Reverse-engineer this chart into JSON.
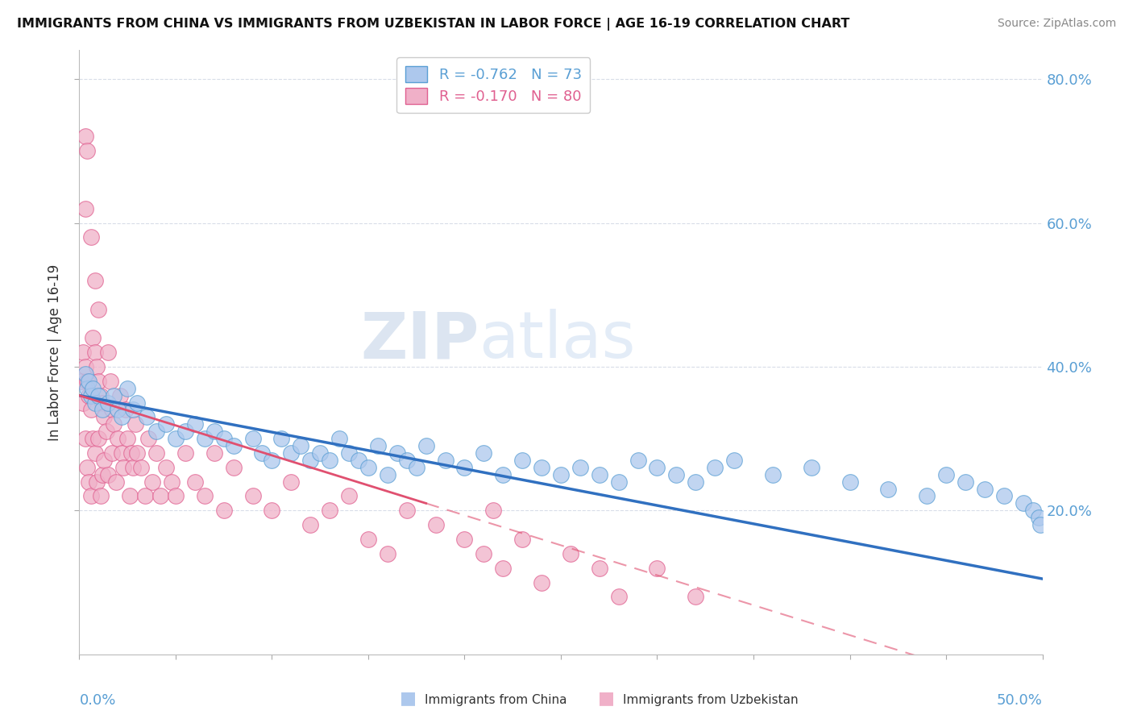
{
  "title": "IMMIGRANTS FROM CHINA VS IMMIGRANTS FROM UZBEKISTAN IN LABOR FORCE | AGE 16-19 CORRELATION CHART",
  "source": "Source: ZipAtlas.com",
  "ylabel": "In Labor Force | Age 16-19",
  "right_ytick_labels": [
    "20.0%",
    "40.0%",
    "60.0%",
    "80.0%"
  ],
  "right_ytick_values": [
    0.2,
    0.4,
    0.6,
    0.8
  ],
  "legend_china_text": "R = -0.762   N = 73",
  "legend_uzbek_text": "R = -0.170   N = 80",
  "color_china_fill": "#adc8ed",
  "color_china_edge": "#5a9fd4",
  "color_uzbek_fill": "#f0b0c8",
  "color_uzbek_edge": "#e06090",
  "color_line_china": "#3070c0",
  "color_line_uzbek": "#e05070",
  "watermark_color": "#d0dff0",
  "background_color": "#ffffff",
  "xlim": [
    0.0,
    0.5
  ],
  "ylim": [
    0.0,
    0.84
  ],
  "grid_color": "#d8dde8",
  "china_scatter_x": [
    0.003,
    0.004,
    0.005,
    0.006,
    0.007,
    0.008,
    0.01,
    0.012,
    0.015,
    0.018,
    0.02,
    0.022,
    0.025,
    0.028,
    0.03,
    0.035,
    0.04,
    0.045,
    0.05,
    0.055,
    0.06,
    0.065,
    0.07,
    0.075,
    0.08,
    0.09,
    0.095,
    0.1,
    0.105,
    0.11,
    0.115,
    0.12,
    0.125,
    0.13,
    0.135,
    0.14,
    0.145,
    0.15,
    0.155,
    0.16,
    0.165,
    0.17,
    0.175,
    0.18,
    0.19,
    0.2,
    0.21,
    0.22,
    0.23,
    0.24,
    0.25,
    0.26,
    0.27,
    0.28,
    0.29,
    0.3,
    0.31,
    0.32,
    0.33,
    0.34,
    0.36,
    0.38,
    0.4,
    0.42,
    0.44,
    0.45,
    0.46,
    0.47,
    0.48,
    0.49,
    0.495,
    0.498,
    0.499
  ],
  "china_scatter_y": [
    0.39,
    0.37,
    0.38,
    0.36,
    0.37,
    0.35,
    0.36,
    0.34,
    0.35,
    0.36,
    0.34,
    0.33,
    0.37,
    0.34,
    0.35,
    0.33,
    0.31,
    0.32,
    0.3,
    0.31,
    0.32,
    0.3,
    0.31,
    0.3,
    0.29,
    0.3,
    0.28,
    0.27,
    0.3,
    0.28,
    0.29,
    0.27,
    0.28,
    0.27,
    0.3,
    0.28,
    0.27,
    0.26,
    0.29,
    0.25,
    0.28,
    0.27,
    0.26,
    0.29,
    0.27,
    0.26,
    0.28,
    0.25,
    0.27,
    0.26,
    0.25,
    0.26,
    0.25,
    0.24,
    0.27,
    0.26,
    0.25,
    0.24,
    0.26,
    0.27,
    0.25,
    0.26,
    0.24,
    0.23,
    0.22,
    0.25,
    0.24,
    0.23,
    0.22,
    0.21,
    0.2,
    0.19,
    0.18
  ],
  "uzbek_scatter_x": [
    0.001,
    0.002,
    0.002,
    0.003,
    0.003,
    0.004,
    0.004,
    0.005,
    0.005,
    0.006,
    0.006,
    0.007,
    0.007,
    0.008,
    0.008,
    0.009,
    0.009,
    0.01,
    0.01,
    0.011,
    0.011,
    0.012,
    0.012,
    0.013,
    0.013,
    0.014,
    0.015,
    0.015,
    0.016,
    0.017,
    0.017,
    0.018,
    0.019,
    0.02,
    0.021,
    0.022,
    0.023,
    0.024,
    0.025,
    0.026,
    0.027,
    0.028,
    0.029,
    0.03,
    0.032,
    0.034,
    0.036,
    0.038,
    0.04,
    0.042,
    0.045,
    0.048,
    0.05,
    0.055,
    0.06,
    0.065,
    0.07,
    0.075,
    0.08,
    0.09,
    0.1,
    0.11,
    0.12,
    0.13,
    0.14,
    0.15,
    0.16,
    0.17,
    0.185,
    0.2,
    0.21,
    0.215,
    0.22,
    0.23,
    0.24,
    0.255,
    0.27,
    0.28,
    0.3,
    0.32
  ],
  "uzbek_scatter_y": [
    0.38,
    0.42,
    0.35,
    0.4,
    0.3,
    0.38,
    0.26,
    0.36,
    0.24,
    0.34,
    0.22,
    0.44,
    0.3,
    0.42,
    0.28,
    0.4,
    0.24,
    0.38,
    0.3,
    0.36,
    0.22,
    0.35,
    0.25,
    0.33,
    0.27,
    0.31,
    0.42,
    0.25,
    0.38,
    0.34,
    0.28,
    0.32,
    0.24,
    0.3,
    0.36,
    0.28,
    0.26,
    0.34,
    0.3,
    0.22,
    0.28,
    0.26,
    0.32,
    0.28,
    0.26,
    0.22,
    0.3,
    0.24,
    0.28,
    0.22,
    0.26,
    0.24,
    0.22,
    0.28,
    0.24,
    0.22,
    0.28,
    0.2,
    0.26,
    0.22,
    0.2,
    0.24,
    0.18,
    0.2,
    0.22,
    0.16,
    0.14,
    0.2,
    0.18,
    0.16,
    0.14,
    0.2,
    0.12,
    0.16,
    0.1,
    0.14,
    0.12,
    0.08,
    0.12,
    0.08
  ],
  "uzbek_outliers_x": [
    0.003,
    0.004,
    0.003,
    0.006,
    0.008,
    0.01
  ],
  "uzbek_outliers_y": [
    0.72,
    0.7,
    0.62,
    0.58,
    0.52,
    0.48
  ]
}
